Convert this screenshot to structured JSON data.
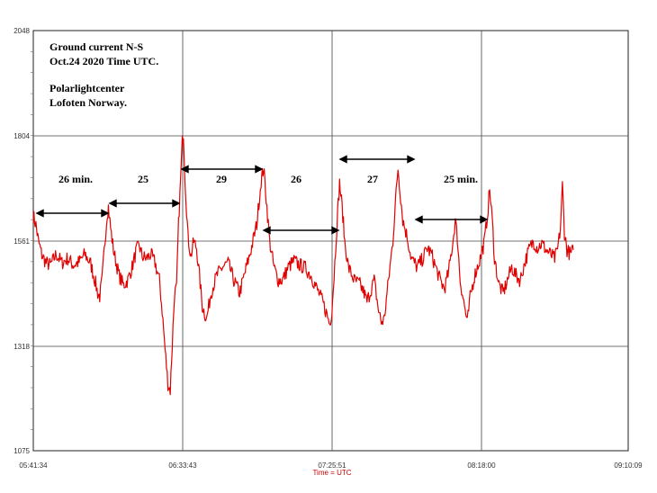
{
  "chart_data": {
    "type": "line",
    "title_lines": [
      "Ground current N-S",
      "Oct.24 2020  Time UTC."
    ],
    "credit_lines": [
      "Polarlightcenter",
      "Lofoten Norway."
    ],
    "xlabel": "Time = UTC",
    "x_tick_labels": [
      "05:41:34",
      "06:33:43",
      "07:25:51",
      "08:18:00",
      "09:10:09"
    ],
    "y_tick_labels": [
      "2048",
      "1804",
      "1561",
      "1318",
      "1075"
    ],
    "ylim": [
      1075,
      2048
    ],
    "grid": true,
    "line_color": "#e00000",
    "series": [
      {
        "values": [
          [
            0.0,
            1620
          ],
          [
            0.9,
            1598
          ],
          [
            1.8,
            1560
          ],
          [
            3.0,
            1528
          ],
          [
            4.5,
            1510
          ],
          [
            6.0,
            1505
          ],
          [
            8.0,
            1530
          ],
          [
            10.0,
            1510
          ],
          [
            12.0,
            1520
          ],
          [
            14.0,
            1505
          ],
          [
            16.0,
            1512
          ],
          [
            18.0,
            1530
          ],
          [
            20.0,
            1508
          ],
          [
            21.5,
            1470
          ],
          [
            22.5,
            1440
          ],
          [
            23.2,
            1432
          ],
          [
            24.0,
            1470
          ],
          [
            25.0,
            1560
          ],
          [
            25.8,
            1625
          ],
          [
            26.2,
            1640
          ],
          [
            27.0,
            1590
          ],
          [
            28.0,
            1540
          ],
          [
            29.0,
            1508
          ],
          [
            30.0,
            1480
          ],
          [
            31.5,
            1458
          ],
          [
            33.0,
            1470
          ],
          [
            34.5,
            1500
          ],
          [
            36.0,
            1540
          ],
          [
            37.0,
            1550
          ],
          [
            38.0,
            1525
          ],
          [
            39.5,
            1520
          ],
          [
            41.0,
            1530
          ],
          [
            42.5,
            1510
          ],
          [
            44.0,
            1470
          ],
          [
            45.0,
            1400
          ],
          [
            46.0,
            1310
          ],
          [
            47.0,
            1230
          ],
          [
            47.8,
            1215
          ],
          [
            48.5,
            1320
          ],
          [
            49.3,
            1440
          ],
          [
            50.0,
            1450
          ],
          [
            50.7,
            1600
          ],
          [
            51.4,
            1700
          ],
          [
            52.0,
            1790
          ],
          [
            52.4,
            1810
          ],
          [
            53.0,
            1700
          ],
          [
            54.0,
            1570
          ],
          [
            55.0,
            1525
          ],
          [
            56.0,
            1560
          ],
          [
            57.0,
            1545
          ],
          [
            58.0,
            1480
          ],
          [
            59.0,
            1410
          ],
          [
            60.5,
            1380
          ],
          [
            62.0,
            1440
          ],
          [
            64.0,
            1480
          ],
          [
            66.0,
            1500
          ],
          [
            68.0,
            1510
          ],
          [
            70.0,
            1470
          ],
          [
            72.0,
            1440
          ],
          [
            74.0,
            1490
          ],
          [
            76.0,
            1540
          ],
          [
            78.0,
            1600
          ],
          [
            79.5,
            1700
          ],
          [
            80.4,
            1730
          ],
          [
            81.3,
            1660
          ],
          [
            82.5,
            1560
          ],
          [
            84.0,
            1500
          ],
          [
            85.5,
            1470
          ],
          [
            87.0,
            1470
          ],
          [
            89.0,
            1500
          ],
          [
            91.0,
            1515
          ],
          [
            93.0,
            1505
          ],
          [
            95.0,
            1498
          ],
          [
            97.0,
            1480
          ],
          [
            99.0,
            1450
          ],
          [
            101.0,
            1420
          ],
          [
            102.5,
            1390
          ],
          [
            103.5,
            1368
          ],
          [
            104.2,
            1400
          ],
          [
            105.0,
            1480
          ],
          [
            106.0,
            1600
          ],
          [
            106.9,
            1695
          ],
          [
            107.8,
            1640
          ],
          [
            108.7,
            1560
          ],
          [
            110.0,
            1500
          ],
          [
            112.0,
            1470
          ],
          [
            114.0,
            1460
          ],
          [
            115.5,
            1440
          ],
          [
            116.5,
            1420
          ],
          [
            117.5,
            1440
          ],
          [
            119.0,
            1470
          ],
          [
            120.5,
            1400
          ],
          [
            121.5,
            1372
          ],
          [
            122.5,
            1380
          ],
          [
            124.0,
            1470
          ],
          [
            125.5,
            1560
          ],
          [
            126.4,
            1650
          ],
          [
            127.3,
            1730
          ],
          [
            128.0,
            1680
          ],
          [
            129.0,
            1610
          ],
          [
            130.5,
            1570
          ],
          [
            132.0,
            1520
          ],
          [
            134.0,
            1500
          ],
          [
            136.0,
            1520
          ],
          [
            137.5,
            1545
          ],
          [
            139.0,
            1530
          ],
          [
            140.5,
            1500
          ],
          [
            142.0,
            1470
          ],
          [
            143.5,
            1450
          ],
          [
            145.0,
            1490
          ],
          [
            146.5,
            1560
          ],
          [
            147.3,
            1610
          ],
          [
            148.0,
            1570
          ],
          [
            149.0,
            1470
          ],
          [
            150.5,
            1410
          ],
          [
            151.5,
            1370
          ],
          [
            152.5,
            1430
          ],
          [
            154.0,
            1480
          ],
          [
            156.0,
            1520
          ],
          [
            157.5,
            1560
          ],
          [
            158.5,
            1620
          ],
          [
            159.3,
            1680
          ],
          [
            160.2,
            1610
          ],
          [
            161.0,
            1520
          ],
          [
            162.5,
            1460
          ],
          [
            164.0,
            1440
          ],
          [
            165.5,
            1470
          ],
          [
            167.0,
            1500
          ],
          [
            168.5,
            1480
          ],
          [
            170.0,
            1470
          ],
          [
            171.5,
            1510
          ],
          [
            173.0,
            1540
          ],
          [
            174.5,
            1560
          ],
          [
            176.0,
            1545
          ],
          [
            177.5,
            1555
          ],
          [
            179.0,
            1540
          ],
          [
            180.5,
            1530
          ],
          [
            182.0,
            1520
          ],
          [
            183.0,
            1540
          ],
          [
            184.0,
            1590
          ],
          [
            184.7,
            1690
          ],
          [
            185.4,
            1580
          ],
          [
            186.3,
            1540
          ],
          [
            187.5,
            1530
          ],
          [
            188.5,
            1540
          ]
        ]
      }
    ],
    "annotations": [
      "26 min.",
      "25",
      "29",
      "26",
      "27",
      "25 min."
    ]
  }
}
